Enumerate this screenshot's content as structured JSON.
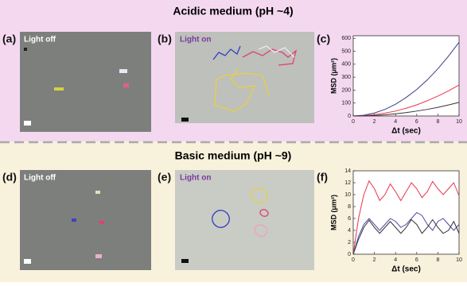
{
  "sections": [
    {
      "title": "Acidic medium (pH ~4)"
    },
    {
      "title": "Basic medium (pH ~9)"
    }
  ],
  "panels": [
    {
      "label": "(a)",
      "caption": "Light off"
    },
    {
      "label": "(b)",
      "caption": "Light on"
    },
    {
      "label": "(c)"
    },
    {
      "label": "(d)",
      "caption": "Light off"
    },
    {
      "label": "(e)",
      "caption": "Light on"
    },
    {
      "label": "(f)"
    }
  ],
  "chart_data": [
    {
      "type": "line",
      "xlabel": "Δt (sec)",
      "ylabel": "MSD (μm²)",
      "x": [
        0,
        1,
        2,
        3,
        4,
        5,
        6,
        7,
        8,
        9,
        10
      ],
      "series": [
        {
          "color": "#3b3b8f",
          "values": [
            0,
            6,
            23,
            51,
            91,
            143,
            205,
            279,
            365,
            462,
            570
          ]
        },
        {
          "color": "#e8354a",
          "values": [
            0,
            2,
            10,
            22,
            38,
            60,
            86,
            118,
            154,
            194,
            240
          ]
        },
        {
          "color": "#333333",
          "values": [
            0,
            1,
            4,
            9,
            17,
            26,
            38,
            51,
            67,
            85,
            105
          ]
        }
      ],
      "xlim": [
        0,
        10
      ],
      "xticks": [
        0,
        2,
        4,
        6,
        8,
        10
      ],
      "ylim": [
        0,
        620
      ],
      "yticks": [
        0,
        100,
        200,
        300,
        400,
        500,
        600
      ]
    },
    {
      "type": "line",
      "xlabel": "Δt (sec)",
      "ylabel": "MSD (μm²)",
      "x": [
        0,
        0.5,
        1,
        1.5,
        2,
        2.5,
        3,
        3.5,
        4,
        4.5,
        5,
        5.5,
        6,
        6.5,
        7,
        7.5,
        8,
        8.5,
        9,
        9.5,
        10
      ],
      "series": [
        {
          "color": "#e8354a",
          "values": [
            0,
            6,
            10,
            12.3,
            11,
            9,
            10,
            11.8,
            10.5,
            9,
            10.5,
            12,
            11,
            9.5,
            10.5,
            12.2,
            11,
            10,
            11,
            12,
            9.8
          ]
        },
        {
          "color": "#4a4aa8",
          "values": [
            0,
            3,
            5,
            6,
            5,
            4,
            5,
            6,
            5.5,
            4.5,
            5,
            6,
            7,
            6.5,
            5,
            4,
            5.5,
            6,
            5,
            4,
            5
          ]
        },
        {
          "color": "#333333",
          "values": [
            0,
            2.5,
            4.5,
            5.7,
            4.5,
            3.5,
            4.5,
            5.5,
            4.5,
            3.5,
            4.5,
            5.8,
            5,
            3.5,
            4.5,
            5.8,
            4.5,
            3.5,
            4,
            5.5,
            3.5
          ]
        }
      ],
      "xlim": [
        0,
        10
      ],
      "xticks": [
        0,
        2,
        4,
        6,
        8,
        10
      ],
      "ylim": [
        0,
        14
      ],
      "yticks": [
        0,
        2,
        4,
        6,
        8,
        10,
        12,
        14
      ]
    }
  ]
}
